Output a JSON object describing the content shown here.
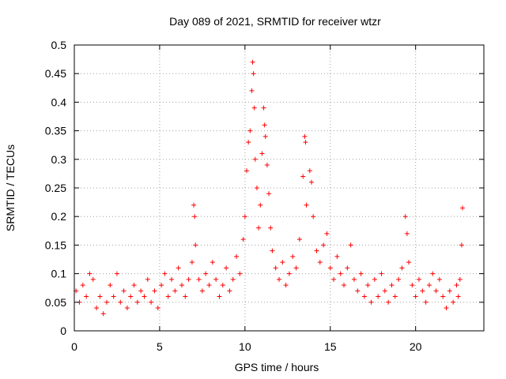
{
  "chart_data": {
    "type": "scatter",
    "title": "Day 089 of 2021, SRMTID for receiver wtzr",
    "xlabel": "GPS time / hours",
    "ylabel": "SRMTID / TECUs",
    "xlim": [
      0,
      24
    ],
    "ylim": [
      0,
      0.5
    ],
    "x_ticks": [
      "0",
      "5",
      "10",
      "15",
      "20"
    ],
    "y_ticks": [
      "0",
      "0.05",
      "0.1",
      "0.15",
      "0.2",
      "0.25",
      "0.3",
      "0.35",
      "0.4",
      "0.45",
      "0.5"
    ],
    "grid": true,
    "marker": "+",
    "color": "#ff0000",
    "series": [
      {
        "name": "SRMTID",
        "points": [
          [
            0.1,
            0.07
          ],
          [
            0.3,
            0.05
          ],
          [
            0.5,
            0.08
          ],
          [
            0.7,
            0.06
          ],
          [
            0.9,
            0.1
          ],
          [
            1.1,
            0.09
          ],
          [
            1.3,
            0.04
          ],
          [
            1.5,
            0.06
          ],
          [
            1.7,
            0.03
          ],
          [
            1.9,
            0.05
          ],
          [
            2.1,
            0.08
          ],
          [
            2.3,
            0.06
          ],
          [
            2.5,
            0.1
          ],
          [
            2.7,
            0.05
          ],
          [
            2.9,
            0.07
          ],
          [
            3.1,
            0.04
          ],
          [
            3.3,
            0.06
          ],
          [
            3.5,
            0.08
          ],
          [
            3.7,
            0.05
          ],
          [
            3.9,
            0.07
          ],
          [
            4.1,
            0.06
          ],
          [
            4.3,
            0.09
          ],
          [
            4.5,
            0.05
          ],
          [
            4.7,
            0.07
          ],
          [
            4.9,
            0.04
          ],
          [
            5.1,
            0.08
          ],
          [
            5.3,
            0.1
          ],
          [
            5.5,
            0.06
          ],
          [
            5.7,
            0.09
          ],
          [
            5.9,
            0.07
          ],
          [
            6.1,
            0.11
          ],
          [
            6.3,
            0.08
          ],
          [
            6.5,
            0.06
          ],
          [
            6.7,
            0.09
          ],
          [
            6.9,
            0.12
          ],
          [
            7.0,
            0.22
          ],
          [
            7.05,
            0.2
          ],
          [
            7.1,
            0.15
          ],
          [
            7.3,
            0.09
          ],
          [
            7.5,
            0.07
          ],
          [
            7.7,
            0.1
          ],
          [
            7.9,
            0.08
          ],
          [
            8.1,
            0.12
          ],
          [
            8.3,
            0.09
          ],
          [
            8.5,
            0.06
          ],
          [
            8.7,
            0.08
          ],
          [
            8.9,
            0.11
          ],
          [
            9.1,
            0.07
          ],
          [
            9.3,
            0.09
          ],
          [
            9.5,
            0.13
          ],
          [
            9.7,
            0.1
          ],
          [
            9.9,
            0.16
          ],
          [
            10.0,
            0.2
          ],
          [
            10.1,
            0.28
          ],
          [
            10.2,
            0.33
          ],
          [
            10.3,
            0.35
          ],
          [
            10.4,
            0.42
          ],
          [
            10.45,
            0.47
          ],
          [
            10.5,
            0.45
          ],
          [
            10.55,
            0.39
          ],
          [
            10.6,
            0.3
          ],
          [
            10.7,
            0.25
          ],
          [
            10.8,
            0.18
          ],
          [
            10.9,
            0.22
          ],
          [
            11.0,
            0.31
          ],
          [
            11.1,
            0.39
          ],
          [
            11.15,
            0.36
          ],
          [
            11.2,
            0.34
          ],
          [
            11.3,
            0.29
          ],
          [
            11.4,
            0.24
          ],
          [
            11.5,
            0.18
          ],
          [
            11.6,
            0.14
          ],
          [
            11.8,
            0.11
          ],
          [
            12.0,
            0.09
          ],
          [
            12.2,
            0.12
          ],
          [
            12.4,
            0.08
          ],
          [
            12.6,
            0.1
          ],
          [
            12.8,
            0.13
          ],
          [
            13.0,
            0.11
          ],
          [
            13.2,
            0.16
          ],
          [
            13.4,
            0.27
          ],
          [
            13.5,
            0.34
          ],
          [
            13.55,
            0.33
          ],
          [
            13.6,
            0.22
          ],
          [
            13.8,
            0.28
          ],
          [
            13.9,
            0.26
          ],
          [
            14.0,
            0.2
          ],
          [
            14.2,
            0.14
          ],
          [
            14.4,
            0.12
          ],
          [
            14.6,
            0.15
          ],
          [
            14.8,
            0.17
          ],
          [
            15.0,
            0.11
          ],
          [
            15.2,
            0.09
          ],
          [
            15.4,
            0.13
          ],
          [
            15.6,
            0.1
          ],
          [
            15.8,
            0.08
          ],
          [
            16.0,
            0.11
          ],
          [
            16.2,
            0.15
          ],
          [
            16.4,
            0.09
          ],
          [
            16.6,
            0.07
          ],
          [
            16.8,
            0.1
          ],
          [
            17.0,
            0.06
          ],
          [
            17.2,
            0.08
          ],
          [
            17.4,
            0.05
          ],
          [
            17.6,
            0.09
          ],
          [
            17.8,
            0.06
          ],
          [
            18.0,
            0.1
          ],
          [
            18.2,
            0.07
          ],
          [
            18.4,
            0.05
          ],
          [
            18.6,
            0.08
          ],
          [
            18.8,
            0.06
          ],
          [
            19.0,
            0.09
          ],
          [
            19.2,
            0.11
          ],
          [
            19.4,
            0.2
          ],
          [
            19.5,
            0.17
          ],
          [
            19.6,
            0.12
          ],
          [
            19.8,
            0.08
          ],
          [
            20.0,
            0.06
          ],
          [
            20.2,
            0.09
          ],
          [
            20.4,
            0.07
          ],
          [
            20.6,
            0.05
          ],
          [
            20.8,
            0.08
          ],
          [
            21.0,
            0.1
          ],
          [
            21.2,
            0.07
          ],
          [
            21.4,
            0.09
          ],
          [
            21.6,
            0.06
          ],
          [
            21.8,
            0.04
          ],
          [
            22.0,
            0.07
          ],
          [
            22.2,
            0.05
          ],
          [
            22.4,
            0.08
          ],
          [
            22.5,
            0.06
          ],
          [
            22.6,
            0.09
          ],
          [
            22.7,
            0.15
          ],
          [
            22.75,
            0.215
          ]
        ]
      }
    ]
  }
}
